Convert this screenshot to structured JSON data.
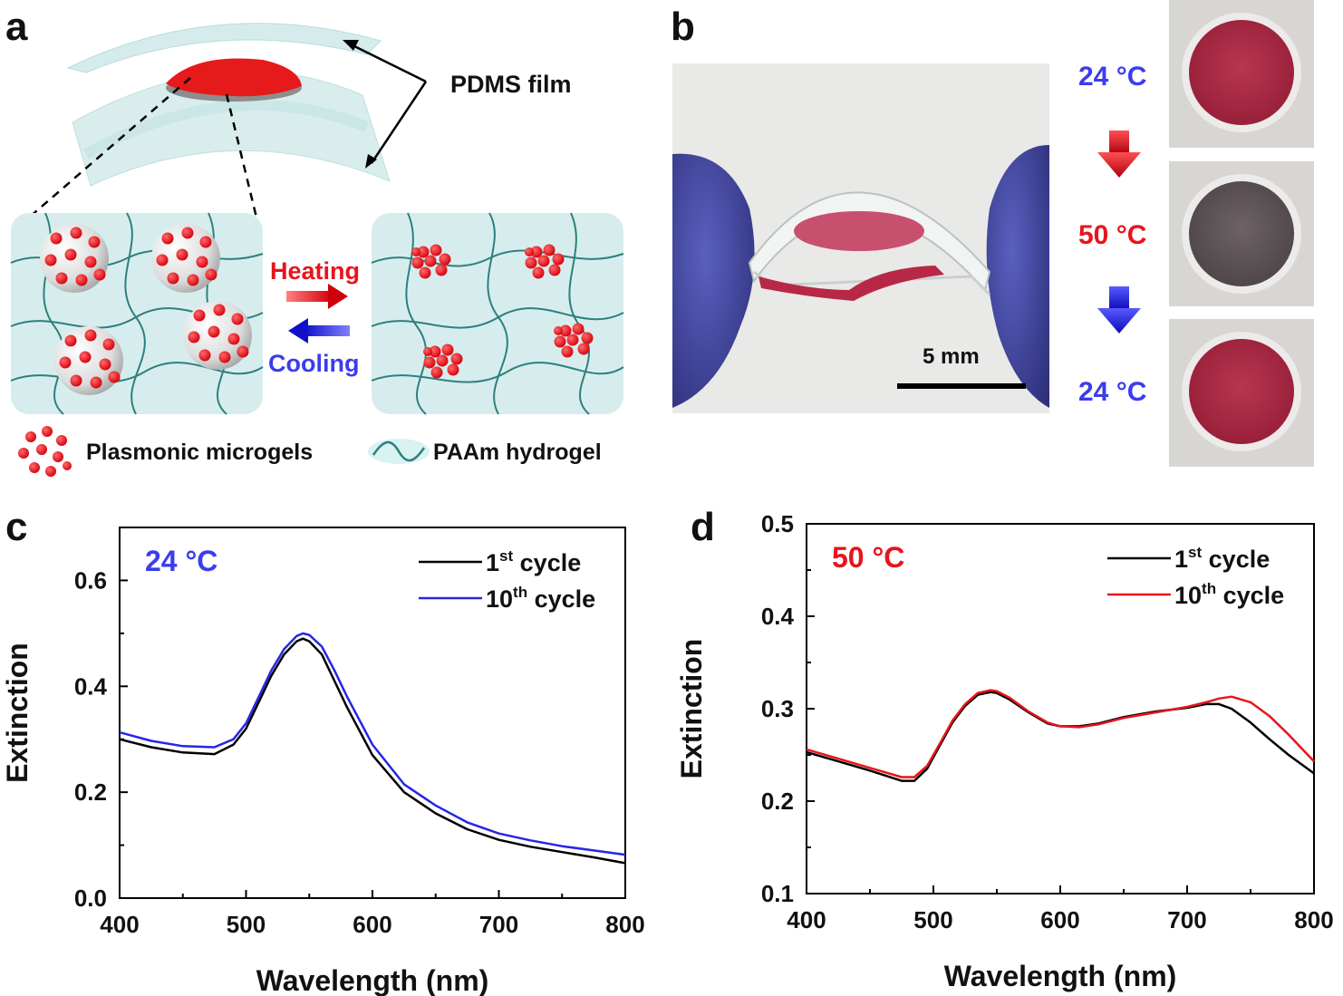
{
  "panels": {
    "a": "a",
    "b": "b",
    "c": "c",
    "d": "d"
  },
  "schematic": {
    "pdms_label": "PDMS film",
    "heating_label": "Heating",
    "cooling_label": "Cooling",
    "legend_microgels": "Plasmonic microgels",
    "legend_hydrogel": "PAAm hydrogel"
  },
  "photo": {
    "scale_bar_label": "5 mm",
    "temp_1": "24 °C",
    "temp_2": "50 °C",
    "temp_3": "24 °C"
  },
  "colors": {
    "red": "#e8141c",
    "blue": "#3a3cf0",
    "hydrogel_bg": "#d7eded",
    "network": "#2f7f7f"
  },
  "chart_data": [
    {
      "type": "line",
      "panel": "c",
      "inset_label": "24 °C",
      "xlabel": "Wavelength (nm)",
      "ylabel": "Extinction",
      "xlim": [
        400,
        800
      ],
      "ylim": [
        0.0,
        0.7
      ],
      "xticks": [
        "400",
        "500",
        "600",
        "700",
        "800"
      ],
      "yticks": [
        "0.0",
        "0.2",
        "0.4",
        "0.6"
      ],
      "series": [
        {
          "name": "1st cycle",
          "base": "1",
          "sup": "st",
          "rest": " cycle",
          "color": "#000000",
          "x": [
            400,
            425,
            450,
            475,
            490,
            500,
            510,
            520,
            530,
            540,
            545,
            550,
            560,
            570,
            580,
            600,
            625,
            650,
            675,
            700,
            725,
            750,
            775,
            800
          ],
          "y": [
            0.3,
            0.285,
            0.275,
            0.272,
            0.29,
            0.32,
            0.37,
            0.42,
            0.46,
            0.485,
            0.49,
            0.485,
            0.46,
            0.41,
            0.36,
            0.27,
            0.2,
            0.16,
            0.13,
            0.11,
            0.097,
            0.087,
            0.077,
            0.066
          ]
        },
        {
          "name": "10th cycle",
          "base": "10",
          "sup": "th",
          "rest": " cycle",
          "color": "#2626e6",
          "x": [
            400,
            425,
            450,
            475,
            490,
            500,
            510,
            520,
            530,
            540,
            545,
            550,
            560,
            570,
            580,
            600,
            625,
            650,
            675,
            700,
            725,
            750,
            775,
            800
          ],
          "y": [
            0.313,
            0.297,
            0.287,
            0.285,
            0.3,
            0.33,
            0.38,
            0.43,
            0.47,
            0.495,
            0.5,
            0.497,
            0.475,
            0.43,
            0.38,
            0.29,
            0.215,
            0.175,
            0.143,
            0.122,
            0.109,
            0.098,
            0.09,
            0.082
          ]
        }
      ]
    },
    {
      "type": "line",
      "panel": "d",
      "inset_label": "50 °C",
      "xlabel": "Wavelength (nm)",
      "ylabel": "Extinction",
      "xlim": [
        400,
        800
      ],
      "ylim": [
        0.1,
        0.5
      ],
      "xticks": [
        "400",
        "500",
        "600",
        "700",
        "800"
      ],
      "yticks": [
        "0.1",
        "0.2",
        "0.3",
        "0.4",
        "0.5"
      ],
      "series": [
        {
          "name": "1st cycle",
          "base": "1",
          "sup": "st",
          "rest": " cycle",
          "color": "#000000",
          "x": [
            400,
            425,
            450,
            475,
            485,
            495,
            505,
            515,
            525,
            535,
            545,
            550,
            560,
            575,
            590,
            600,
            615,
            630,
            650,
            675,
            700,
            715,
            725,
            735,
            750,
            765,
            780,
            800
          ],
          "y": [
            0.253,
            0.243,
            0.233,
            0.222,
            0.222,
            0.235,
            0.26,
            0.285,
            0.303,
            0.315,
            0.318,
            0.317,
            0.31,
            0.296,
            0.284,
            0.281,
            0.281,
            0.284,
            0.291,
            0.297,
            0.301,
            0.305,
            0.305,
            0.3,
            0.285,
            0.267,
            0.25,
            0.23
          ]
        },
        {
          "name": "10th cycle",
          "base": "10",
          "sup": "th",
          "rest": " cycle",
          "color": "#e8141c",
          "x": [
            400,
            425,
            450,
            475,
            485,
            495,
            505,
            515,
            525,
            535,
            545,
            550,
            560,
            575,
            590,
            600,
            615,
            630,
            650,
            675,
            700,
            715,
            725,
            735,
            750,
            765,
            780,
            800
          ],
          "y": [
            0.256,
            0.246,
            0.236,
            0.226,
            0.226,
            0.238,
            0.262,
            0.287,
            0.305,
            0.317,
            0.32,
            0.319,
            0.312,
            0.297,
            0.285,
            0.281,
            0.28,
            0.283,
            0.29,
            0.296,
            0.302,
            0.307,
            0.311,
            0.313,
            0.307,
            0.292,
            0.272,
            0.243
          ]
        }
      ]
    }
  ]
}
